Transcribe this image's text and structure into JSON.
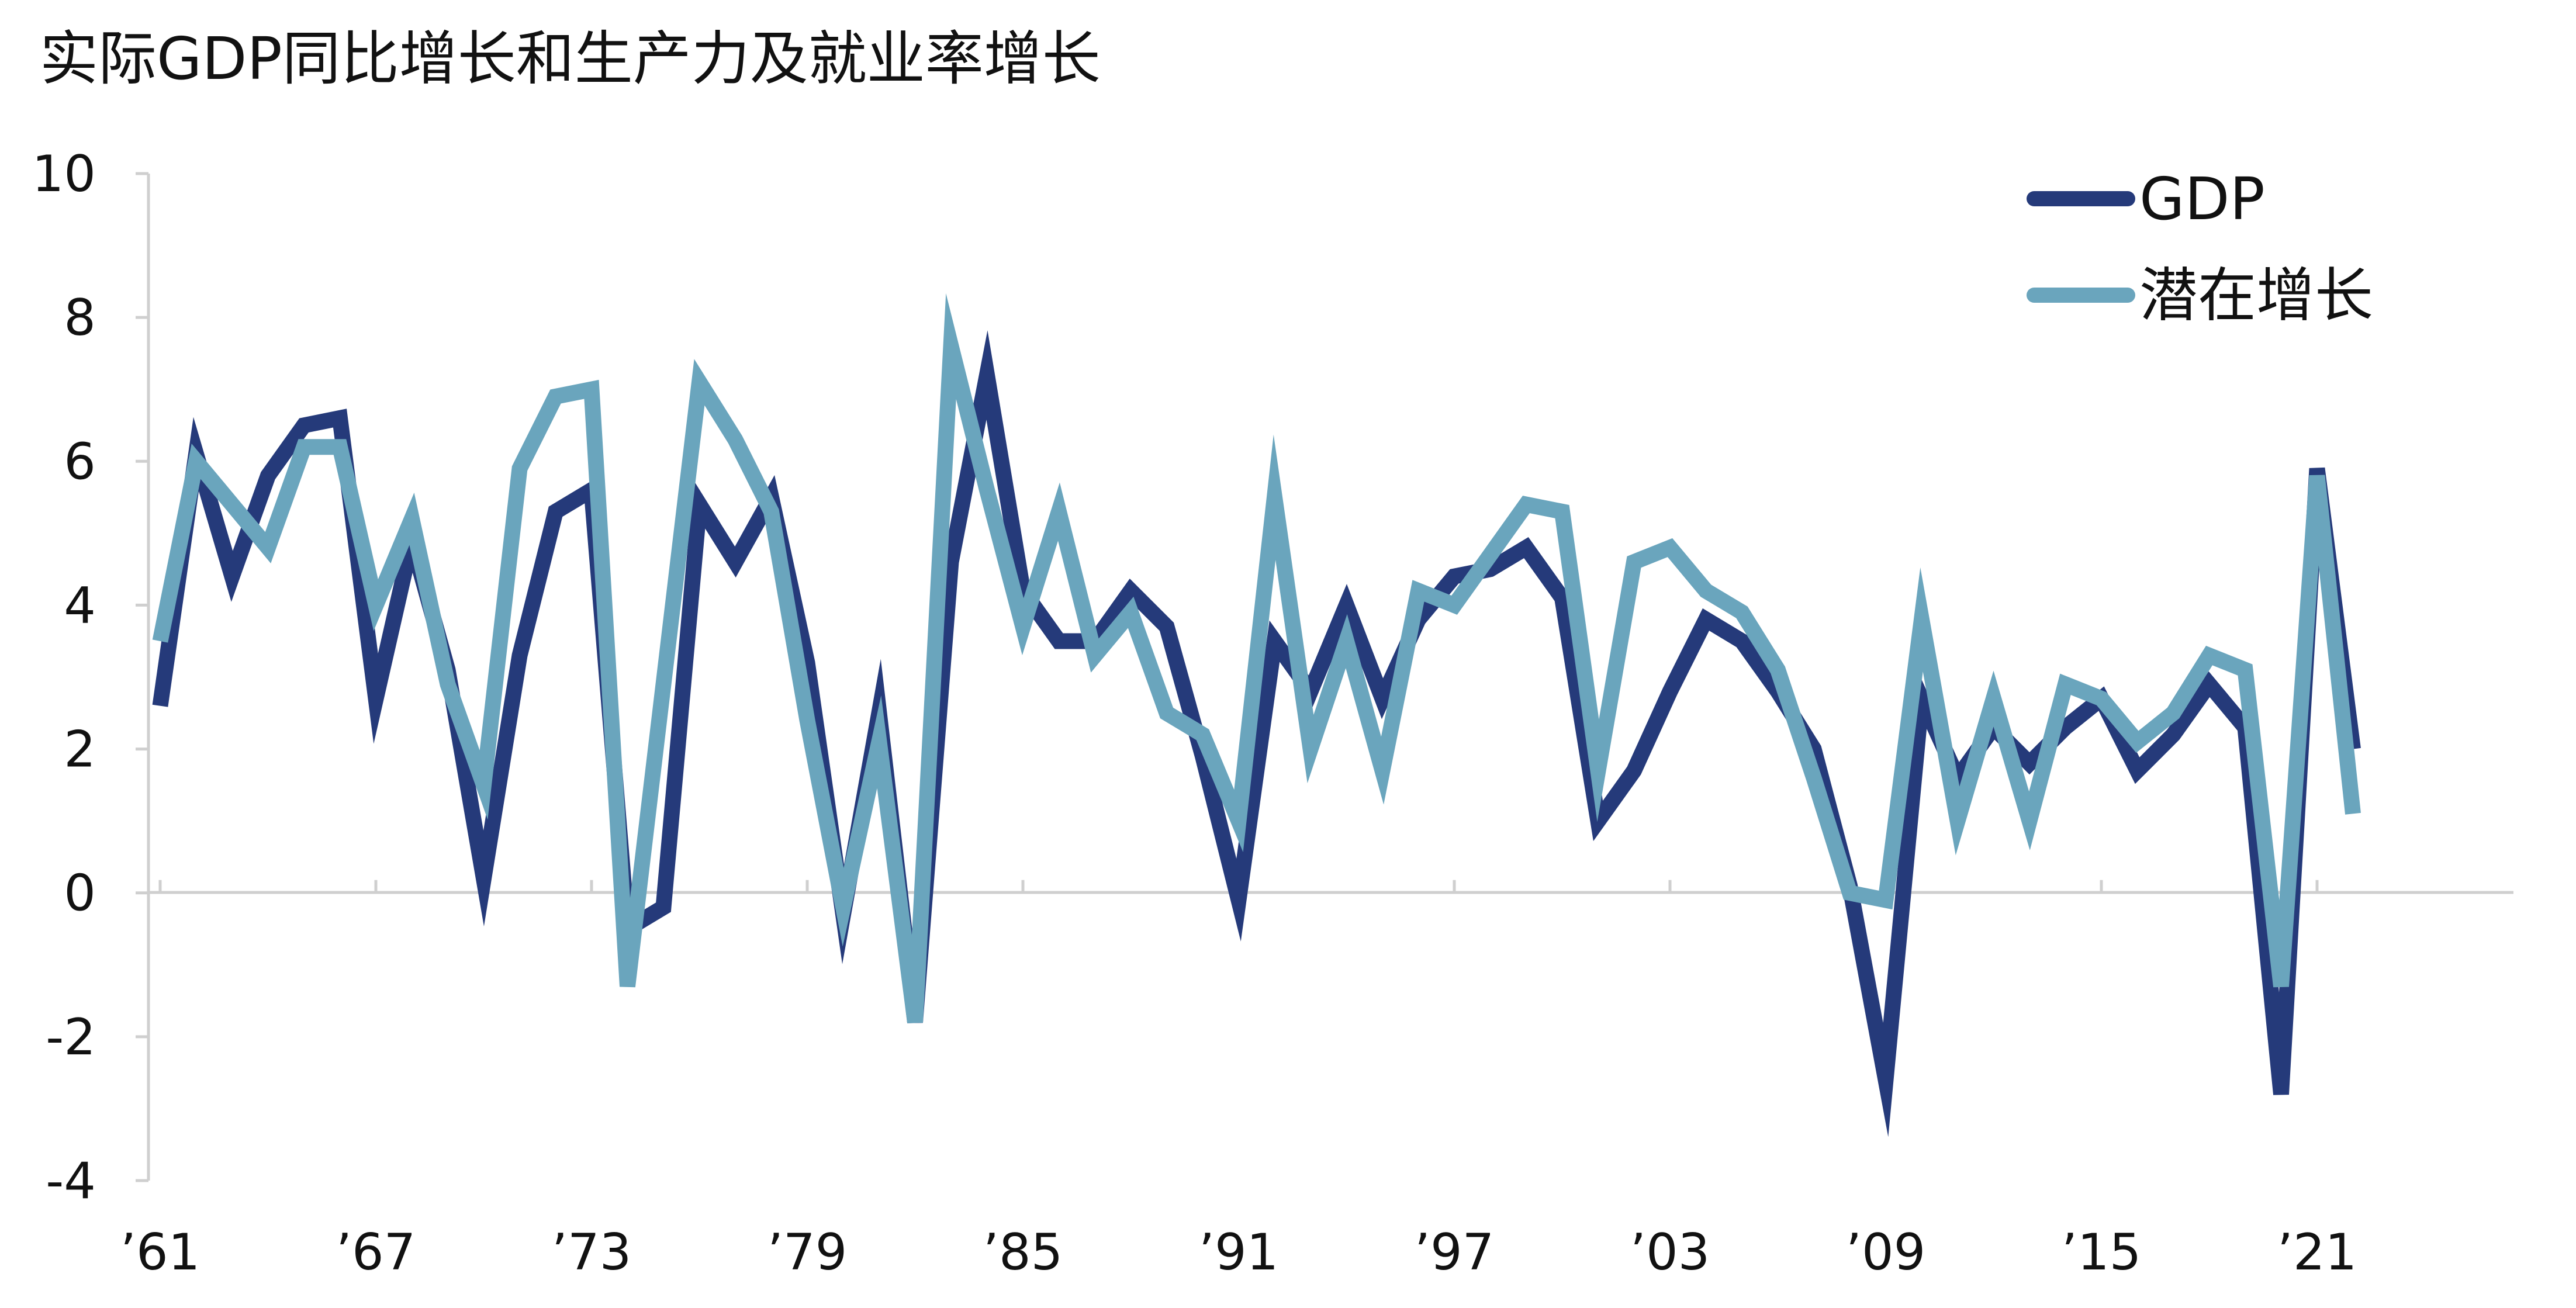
{
  "chart_data": {
    "type": "line",
    "title": "实际GDP同比增长和生产力及就业率增长",
    "xlabel": "",
    "ylabel": "",
    "x": [
      1961,
      1962,
      1963,
      1964,
      1965,
      1966,
      1967,
      1968,
      1969,
      1970,
      1971,
      1972,
      1973,
      1974,
      1975,
      1976,
      1977,
      1978,
      1979,
      1980,
      1981,
      1982,
      1983,
      1984,
      1985,
      1986,
      1987,
      1988,
      1989,
      1990,
      1991,
      1992,
      1993,
      1994,
      1995,
      1996,
      1997,
      1998,
      1999,
      2000,
      2001,
      2002,
      2003,
      2004,
      2005,
      2006,
      2007,
      2008,
      2009,
      2010,
      2011,
      2012,
      2013,
      2014,
      2015,
      2016,
      2017,
      2018,
      2019,
      2020,
      2021,
      2022
    ],
    "xlim": [
      1961,
      2025
    ],
    "ylim": [
      -4,
      10
    ],
    "y_ticks": [
      -4,
      -2,
      0,
      2,
      4,
      6,
      8,
      10
    ],
    "y_tick_labels": [
      "-4",
      "-2",
      "0",
      "2",
      "4",
      "6",
      "8",
      "10"
    ],
    "x_ticks": [
      1961,
      1967,
      1973,
      1979,
      1985,
      1991,
      1997,
      2003,
      2009,
      2015,
      2021
    ],
    "x_tick_labels": [
      "’61",
      "’67",
      "’73",
      "’79",
      "’85",
      "’91",
      "’97",
      "’03",
      "’09",
      "’15",
      "’21"
    ],
    "legend_position": "top-right",
    "grid": false,
    "series": [
      {
        "name": "GDP",
        "color": "#253a7a",
        "values": [
          2.6,
          6.1,
          4.4,
          5.8,
          6.5,
          6.6,
          2.7,
          4.9,
          3.1,
          0.2,
          3.3,
          5.3,
          5.6,
          -0.5,
          -0.2,
          5.4,
          4.6,
          5.5,
          3.2,
          -0.3,
          2.5,
          -1.8,
          4.6,
          7.2,
          4.2,
          3.5,
          3.5,
          4.2,
          3.7,
          1.9,
          -0.1,
          3.5,
          2.8,
          4.0,
          2.7,
          3.8,
          4.4,
          4.5,
          4.8,
          4.1,
          1.0,
          1.7,
          2.8,
          3.8,
          3.5,
          2.8,
          2.0,
          0.1,
          -2.6,
          2.7,
          1.6,
          2.3,
          1.8,
          2.3,
          2.7,
          1.7,
          2.2,
          2.9,
          2.3,
          -2.8,
          5.9,
          2.0
        ]
      },
      {
        "name": "潜在增长",
        "color": "#6aa5bd",
        "values": [
          3.5,
          6.0,
          5.4,
          4.8,
          6.2,
          6.2,
          4.0,
          5.2,
          2.9,
          1.5,
          5.9,
          6.9,
          7.0,
          -1.3,
          2.9,
          7.1,
          6.3,
          5.3,
          2.4,
          -0.2,
          2.1,
          -1.8,
          7.6,
          5.6,
          3.7,
          5.3,
          3.3,
          3.9,
          2.5,
          2.2,
          1.0,
          5.5,
          2.0,
          3.5,
          1.7,
          4.2,
          4.0,
          4.7,
          5.4,
          5.3,
          1.7,
          4.6,
          4.8,
          4.2,
          3.9,
          3.1,
          1.6,
          0.0,
          -0.1,
          3.8,
          1.0,
          2.7,
          1.0,
          2.9,
          2.7,
          2.1,
          2.5,
          3.3,
          3.1,
          -1.3,
          5.8,
          1.1
        ]
      }
    ]
  }
}
